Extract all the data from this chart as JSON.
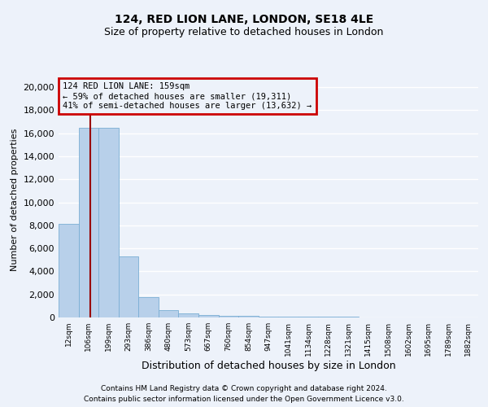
{
  "title1": "124, RED LION LANE, LONDON, SE18 4LE",
  "title2": "Size of property relative to detached houses in London",
  "xlabel": "Distribution of detached houses by size in London",
  "ylabel": "Number of detached properties",
  "bin_labels": [
    "12sqm",
    "106sqm",
    "199sqm",
    "293sqm",
    "386sqm",
    "480sqm",
    "573sqm",
    "667sqm",
    "760sqm",
    "854sqm",
    "947sqm",
    "1041sqm",
    "1134sqm",
    "1228sqm",
    "1321sqm",
    "1415sqm",
    "1508sqm",
    "1602sqm",
    "1695sqm",
    "1789sqm",
    "1882sqm"
  ],
  "bar_values": [
    8100,
    16500,
    16500,
    5300,
    1800,
    650,
    350,
    230,
    150,
    110,
    80,
    65,
    55,
    45,
    40,
    35,
    30,
    25,
    20,
    18,
    12
  ],
  "bar_color": "#b8d0ea",
  "bar_edge_color": "#7aaed4",
  "property_line_color": "#990000",
  "annotation_text": "124 RED LION LANE: 159sqm\n← 59% of detached houses are smaller (19,311)\n41% of semi-detached houses are larger (13,632) →",
  "annotation_box_color": "#cc0000",
  "ylim": [
    0,
    20500
  ],
  "yticks": [
    0,
    2000,
    4000,
    6000,
    8000,
    10000,
    12000,
    14000,
    16000,
    18000,
    20000
  ],
  "footer1": "Contains HM Land Registry data © Crown copyright and database right 2024.",
  "footer2": "Contains public sector information licensed under the Open Government Licence v3.0.",
  "background_color": "#edf2fa",
  "grid_color": "#ffffff",
  "plot_bg_color": "#edf2fa"
}
